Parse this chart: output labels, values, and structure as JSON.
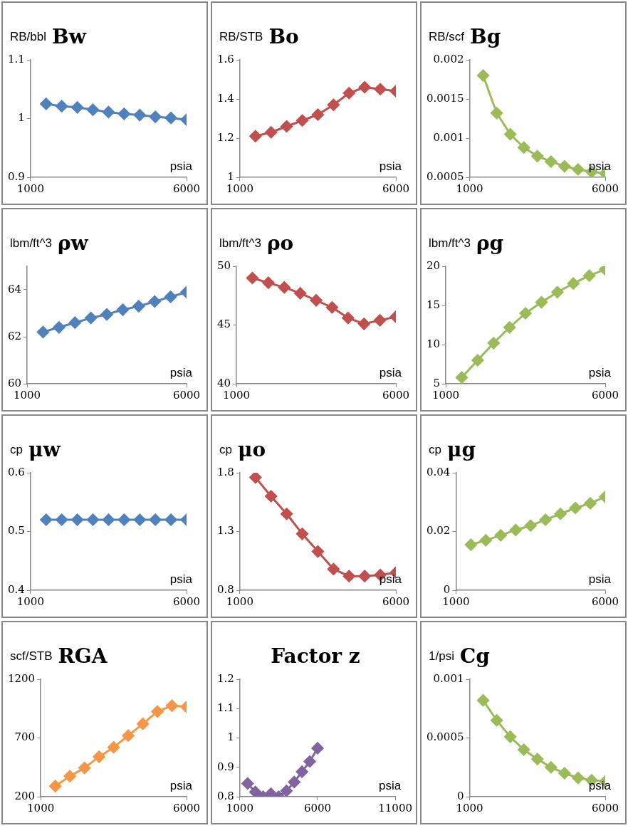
{
  "chart_data": [
    {
      "type": "line",
      "title": "Bw",
      "ylabel": "RB/bbl",
      "xlabel": "psia",
      "x": [
        1500,
        2000,
        2500,
        3000,
        3500,
        4000,
        4500,
        5000,
        5500,
        6000
      ],
      "series": [
        {
          "color": "#4f81bd",
          "values": [
            1.025,
            1.021,
            1.019,
            1.015,
            1.011,
            1.008,
            1.006,
            1.003,
            1.001,
            0.998
          ]
        }
      ],
      "xlim": [
        1000,
        6000
      ],
      "xticks": [
        1000,
        6000
      ],
      "ylim": [
        0.9,
        1.1
      ],
      "yticks": [
        0.9,
        1,
        1.1
      ],
      "marker": "diamond",
      "line_style": "solid",
      "grid": false,
      "legend": false
    },
    {
      "type": "line",
      "title": "Bo",
      "ylabel": "RB/STB",
      "xlabel": "psia",
      "x": [
        1500,
        2000,
        2500,
        3000,
        3500,
        4000,
        4500,
        5000,
        5500,
        6000
      ],
      "series": [
        {
          "color": "#c0504d",
          "values": [
            1.21,
            1.23,
            1.26,
            1.29,
            1.32,
            1.37,
            1.43,
            1.46,
            1.45,
            1.44
          ]
        }
      ],
      "xlim": [
        1000,
        6000
      ],
      "xticks": [
        1000,
        6000
      ],
      "ylim": [
        1,
        1.6
      ],
      "yticks": [
        1,
        1.2,
        1.4,
        1.6
      ],
      "marker": "diamond",
      "line_style": "solid",
      "grid": false,
      "legend": false
    },
    {
      "type": "line",
      "title": "Bg",
      "ylabel": "RB/scf",
      "xlabel": "psia",
      "x": [
        1500,
        2000,
        2500,
        3000,
        3500,
        4000,
        4500,
        5000,
        5500,
        6000
      ],
      "series": [
        {
          "color": "#9bbb59",
          "values": [
            0.0018,
            0.00132,
            0.00105,
            0.00088,
            0.00077,
            0.0007,
            0.00064,
            0.0006,
            0.00057,
            0.00055
          ]
        }
      ],
      "xlim": [
        1000,
        6000
      ],
      "xticks": [
        1000,
        6000
      ],
      "ylim": [
        0.0005,
        0.002
      ],
      "yticks": [
        0.0005,
        0.001,
        0.0015,
        0.002
      ],
      "marker": "diamond",
      "line_style": "solid",
      "grid": false,
      "legend": false
    },
    {
      "type": "line",
      "title": "ρw",
      "ylabel": "lbm/ft^3",
      "xlabel": "psia",
      "x": [
        1500,
        2000,
        2500,
        3000,
        3500,
        4000,
        4500,
        5000,
        5500,
        6000
      ],
      "series": [
        {
          "color": "#4f81bd",
          "values": [
            62.2,
            62.4,
            62.6,
            62.8,
            62.95,
            63.15,
            63.3,
            63.5,
            63.7,
            63.9
          ]
        }
      ],
      "xlim": [
        1000,
        6000
      ],
      "xticks": [
        1000,
        6000
      ],
      "ylim": [
        60,
        65
      ],
      "yticks": [
        60,
        62,
        64
      ],
      "marker": "diamond",
      "line_style": "solid",
      "grid": false,
      "legend": false
    },
    {
      "type": "line",
      "title": "ρo",
      "ylabel": "lbm/ft^3",
      "xlabel": "psia",
      "x": [
        1500,
        2000,
        2500,
        3000,
        3500,
        4000,
        4500,
        5000,
        5500,
        6000
      ],
      "series": [
        {
          "color": "#c0504d",
          "values": [
            49,
            48.6,
            48.2,
            47.7,
            47.1,
            46.5,
            45.6,
            45.1,
            45.4,
            45.7
          ]
        }
      ],
      "xlim": [
        1000,
        6000
      ],
      "xticks": [
        1000,
        6000
      ],
      "ylim": [
        40,
        50
      ],
      "yticks": [
        40,
        45,
        50
      ],
      "marker": "diamond",
      "line_style": "solid",
      "grid": false,
      "legend": false
    },
    {
      "type": "line",
      "title": "ρg",
      "ylabel": "lbm/ft^3",
      "xlabel": "psia",
      "x": [
        1500,
        2000,
        2500,
        3000,
        3500,
        4000,
        4500,
        5000,
        5500,
        6000
      ],
      "series": [
        {
          "color": "#9bbb59",
          "values": [
            5.8,
            8,
            10.2,
            12.2,
            14,
            15.4,
            16.7,
            17.8,
            18.8,
            19.6
          ]
        }
      ],
      "xlim": [
        1000,
        6000
      ],
      "xticks": [
        1000,
        6000
      ],
      "ylim": [
        5,
        20
      ],
      "yticks": [
        5,
        10,
        15,
        20
      ],
      "marker": "diamond",
      "line_style": "solid",
      "grid": false,
      "legend": false
    },
    {
      "type": "line",
      "title": "μw",
      "ylabel": "cp",
      "xlabel": "psia",
      "x": [
        1500,
        2000,
        2500,
        3000,
        3500,
        4000,
        4500,
        5000,
        5500,
        6000
      ],
      "series": [
        {
          "color": "#4f81bd",
          "values": [
            0.52,
            0.52,
            0.52,
            0.52,
            0.52,
            0.52,
            0.52,
            0.52,
            0.52,
            0.52
          ]
        }
      ],
      "xlim": [
        1000,
        6000
      ],
      "xticks": [
        1000,
        6000
      ],
      "ylim": [
        0.4,
        0.6
      ],
      "yticks": [
        0.4,
        0.5,
        0.6
      ],
      "marker": "diamond",
      "line_style": "solid",
      "grid": false,
      "legend": false
    },
    {
      "type": "line",
      "title": "μo",
      "ylabel": "cp",
      "xlabel": "psia",
      "x": [
        1500,
        2000,
        2500,
        3000,
        3500,
        4000,
        4500,
        5000,
        5500,
        6000
      ],
      "series": [
        {
          "color": "#c0504d",
          "values": [
            1.76,
            1.6,
            1.45,
            1.28,
            1.13,
            0.98,
            0.92,
            0.92,
            0.93,
            0.95
          ]
        }
      ],
      "xlim": [
        1000,
        6000
      ],
      "xticks": [
        1000,
        6000
      ],
      "ylim": [
        0.8,
        1.8
      ],
      "yticks": [
        0.8,
        1.3,
        1.8
      ],
      "marker": "diamond",
      "line_style": "solid",
      "grid": false,
      "legend": false
    },
    {
      "type": "line",
      "title": "μg",
      "ylabel": "cp",
      "xlabel": "psia",
      "x": [
        1500,
        2000,
        2500,
        3000,
        3500,
        4000,
        4500,
        5000,
        5500,
        6000
      ],
      "series": [
        {
          "color": "#9bbb59",
          "values": [
            0.0155,
            0.017,
            0.0187,
            0.0205,
            0.022,
            0.024,
            0.026,
            0.028,
            0.0296,
            0.0318
          ]
        }
      ],
      "xlim": [
        1000,
        6000
      ],
      "xticks": [
        1000,
        6000
      ],
      "ylim": [
        0,
        0.04
      ],
      "yticks": [
        0,
        0.02,
        0.04
      ],
      "marker": "diamond",
      "line_style": "solid",
      "grid": false,
      "legend": false
    },
    {
      "type": "line",
      "title": "RGA",
      "ylabel": "scf/STB",
      "xlabel": "psia",
      "x": [
        1500,
        2000,
        2500,
        3000,
        3500,
        4000,
        4500,
        5000,
        5500,
        6000
      ],
      "series": [
        {
          "color": "#f79646",
          "values": [
            290,
            375,
            445,
            540,
            620,
            720,
            820,
            925,
            975,
            965
          ]
        }
      ],
      "xlim": [
        1000,
        6000
      ],
      "xticks": [
        1000,
        6000
      ],
      "ylim": [
        200,
        1200
      ],
      "yticks": [
        200,
        700,
        1200
      ],
      "marker": "diamond",
      "line_style": "solid",
      "grid": false,
      "legend": false
    },
    {
      "type": "line",
      "title": "Factor z",
      "xlabel": "psia",
      "x": [
        1500,
        2000,
        2500,
        3000,
        3500,
        4000,
        4500,
        5000,
        5500,
        6000
      ],
      "series": [
        {
          "color": "#8064a2",
          "values": [
            0.845,
            0.816,
            0.8,
            0.81,
            0.8,
            0.82,
            0.85,
            0.885,
            0.92,
            0.965
          ]
        }
      ],
      "xlim": [
        1000,
        11000
      ],
      "xticks": [
        1000,
        6000,
        11000
      ],
      "ylim": [
        0.8,
        1.2
      ],
      "yticks": [
        0.8,
        0.9,
        1,
        1.1,
        1.2
      ],
      "marker": "diamond",
      "line_style": "solid",
      "grid": false,
      "legend": false
    },
    {
      "type": "line",
      "title": "Cg",
      "ylabel": "1/psi",
      "xlabel": "psia",
      "x": [
        1500,
        2000,
        2500,
        3000,
        3500,
        4000,
        4500,
        5000,
        5500,
        6000
      ],
      "series": [
        {
          "color": "#9bbb59",
          "values": [
            0.00082,
            0.00065,
            0.00051,
            0.0004,
            0.00032,
            0.00025,
            0.0002,
            0.00016,
            0.00014,
            0.00013
          ]
        }
      ],
      "xlim": [
        1000,
        6000
      ],
      "xticks": [
        1000,
        6000
      ],
      "ylim": [
        0,
        0.001
      ],
      "yticks": [
        0,
        0.0005,
        0.001
      ],
      "marker": "diamond",
      "line_style": "solid",
      "grid": false,
      "legend": false
    }
  ]
}
